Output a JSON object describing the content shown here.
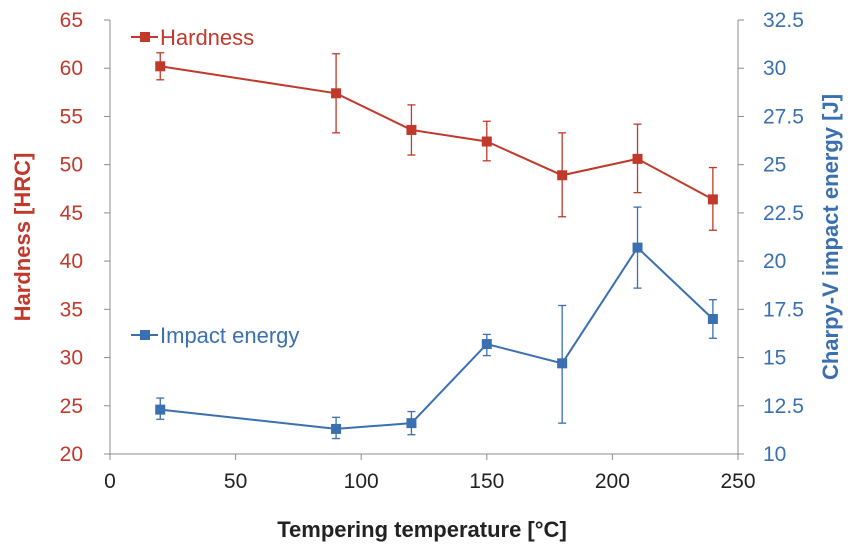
{
  "chart_data": {
    "type": "line",
    "xlabel": "Tempering temperature [°C]",
    "ylabel": "Hardness [HRC]",
    "y2label": "Charpy-V impact energy [J]",
    "xlim": [
      0,
      250
    ],
    "ylim": [
      20,
      65
    ],
    "y2lim": [
      10,
      32.5
    ],
    "xticks": [
      "0",
      "50",
      "100",
      "150",
      "200",
      "250"
    ],
    "yticks": [
      "20",
      "25",
      "30",
      "35",
      "40",
      "45",
      "50",
      "55",
      "60",
      "65"
    ],
    "y2ticks": [
      "10",
      "12.5",
      "15",
      "17.5",
      "20",
      "22.5",
      "25",
      "27.5",
      "30",
      "32.5"
    ],
    "grid": false,
    "legend_placement": "inside-left",
    "series": [
      {
        "name": "Hardness",
        "axis": "left",
        "color": "#c0392b",
        "x": [
          20,
          90,
          120,
          150,
          180,
          210,
          240
        ],
        "y": [
          60.2,
          57.4,
          53.6,
          52.4,
          48.9,
          50.6,
          46.4
        ],
        "err_low": [
          58.8,
          53.3,
          51.0,
          50.4,
          44.6,
          47.1,
          43.2
        ],
        "err_high": [
          61.6,
          61.5,
          56.2,
          54.5,
          53.3,
          54.2,
          49.7
        ]
      },
      {
        "name": "Impact energy",
        "axis": "right",
        "color": "#3a6fb0",
        "x": [
          20,
          90,
          120,
          150,
          180,
          210,
          240
        ],
        "y": [
          12.3,
          11.3,
          11.6,
          15.7,
          14.7,
          20.7,
          17.0
        ],
        "err_low": [
          11.8,
          10.8,
          11.0,
          15.1,
          11.6,
          18.6,
          16.0
        ],
        "err_high": [
          12.9,
          11.9,
          12.2,
          16.2,
          17.7,
          22.8,
          18.0
        ]
      }
    ]
  }
}
